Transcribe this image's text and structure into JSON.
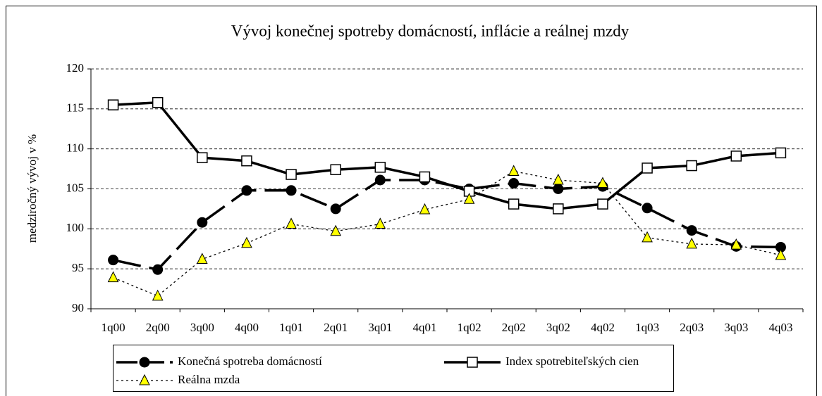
{
  "chart_data": {
    "type": "line",
    "title": "Vývoj konečnej spotreby domácností, inflácie a reálnej mzdy",
    "y_label": "medziročný vývoj v %",
    "categories": [
      "1q00",
      "2q00",
      "3q00",
      "4q00",
      "1q01",
      "2q01",
      "3q01",
      "4q01",
      "1q02",
      "2q02",
      "3q02",
      "4q02",
      "1q03",
      "2q03",
      "3q03",
      "4q03"
    ],
    "series": [
      {
        "name": "Konečná spotreba domácností",
        "color": "#000000",
        "line_style": "dashed",
        "marker": "circle",
        "values": [
          96.1,
          94.9,
          100.8,
          104.8,
          104.8,
          102.5,
          106.1,
          106.1,
          105.0,
          105.7,
          105.0,
          105.3,
          102.6,
          99.8,
          97.8,
          97.7
        ]
      },
      {
        "name": "Index spotrebiteľských cien",
        "color": "#000000",
        "line_style": "solid",
        "marker": "square",
        "values": [
          115.5,
          115.8,
          108.9,
          108.5,
          106.8,
          107.4,
          107.7,
          106.5,
          104.7,
          103.1,
          102.5,
          103.1,
          107.6,
          107.9,
          109.1,
          109.5
        ]
      },
      {
        "name": "Reálna mzda",
        "color": "#ffff00",
        "line_style": "dotted",
        "marker": "triangle",
        "values": [
          93.9,
          91.6,
          96.2,
          98.2,
          100.6,
          99.7,
          100.6,
          102.4,
          103.7,
          107.2,
          106.1,
          105.7,
          98.9,
          98.1,
          98.0,
          96.7
        ]
      }
    ],
    "ylim": [
      90,
      120
    ],
    "yticks": [
      90,
      95,
      100,
      105,
      110,
      115,
      120
    ],
    "grid": true
  }
}
